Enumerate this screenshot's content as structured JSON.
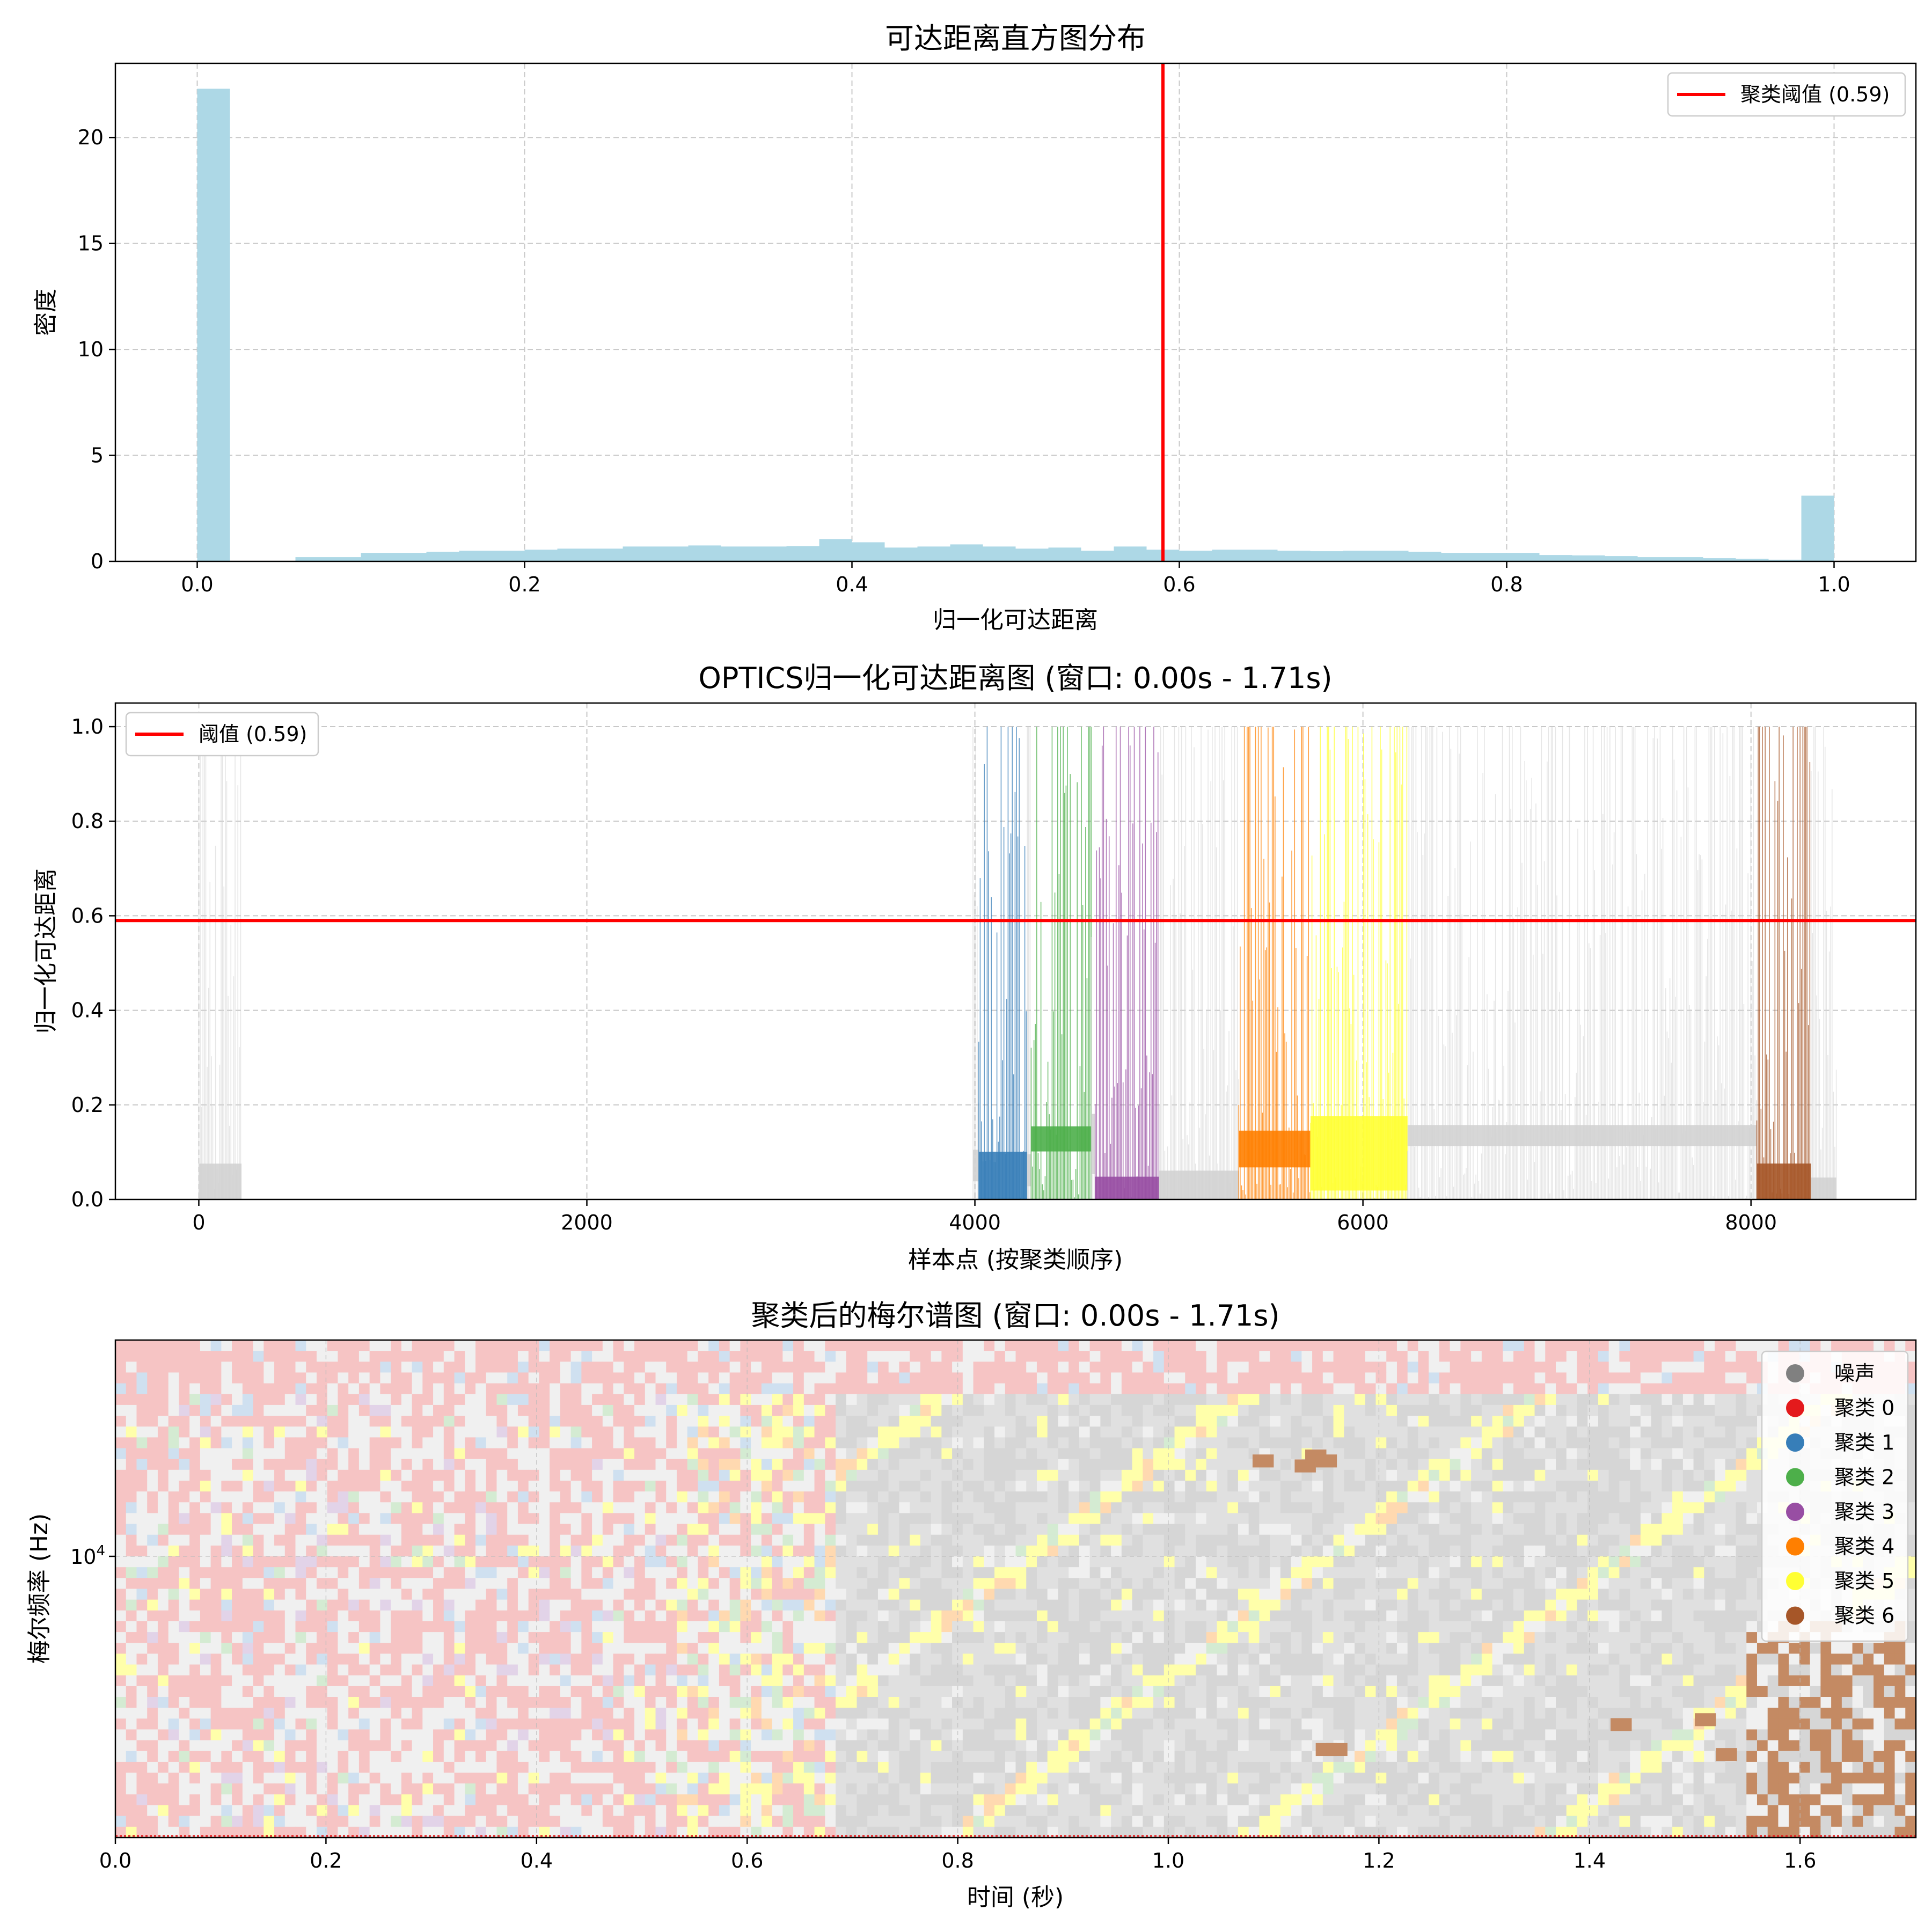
{
  "colors": {
    "hist_bar": "#add8e6",
    "threshold": "#ff0000",
    "noise_bar": "#d3d3d3",
    "cluster": [
      "#e41a1c",
      "#377eb8",
      "#4daf4a",
      "#984ea3",
      "#ff7f00",
      "#ffff33",
      "#a65628"
    ],
    "noise": "#808080",
    "grid": "#c8c8c8"
  },
  "chart_data": [
    {
      "type": "bar",
      "title": "可达距离直方图分布",
      "xlabel": "归一化可达距离",
      "ylabel": "密度",
      "xlim": [
        -0.05,
        1.05
      ],
      "ylim": [
        0,
        23.5
      ],
      "xticks": [
        0.0,
        0.2,
        0.4,
        0.6,
        0.8,
        1.0
      ],
      "xtick_labels": [
        "0.0",
        "0.2",
        "0.4",
        "0.6",
        "0.8",
        "1.0"
      ],
      "yticks": [
        0,
        5,
        10,
        15,
        20
      ],
      "ytick_labels": [
        "0",
        "5",
        "10",
        "15",
        "20"
      ],
      "grid": true,
      "bin_width": 0.02,
      "bins_start": [
        0.0,
        0.02,
        0.04,
        0.06,
        0.08,
        0.1,
        0.12,
        0.14,
        0.16,
        0.18,
        0.2,
        0.22,
        0.24,
        0.26,
        0.28,
        0.3,
        0.32,
        0.34,
        0.36,
        0.38,
        0.4,
        0.42,
        0.44,
        0.46,
        0.48,
        0.5,
        0.52,
        0.54,
        0.56,
        0.58,
        0.6,
        0.62,
        0.64,
        0.66,
        0.68,
        0.7,
        0.72,
        0.74,
        0.76,
        0.78,
        0.8,
        0.82,
        0.84,
        0.86,
        0.88,
        0.9,
        0.92,
        0.94,
        0.96,
        0.98
      ],
      "values": [
        22.3,
        0,
        0,
        0.2,
        0.2,
        0.4,
        0.4,
        0.45,
        0.5,
        0.5,
        0.55,
        0.6,
        0.6,
        0.7,
        0.7,
        0.75,
        0.7,
        0.7,
        0.72,
        1.05,
        0.9,
        0.65,
        0.7,
        0.8,
        0.7,
        0.6,
        0.65,
        0.5,
        0.7,
        0.55,
        0.5,
        0.55,
        0.55,
        0.5,
        0.48,
        0.5,
        0.5,
        0.45,
        0.4,
        0.4,
        0.4,
        0.3,
        0.28,
        0.25,
        0.2,
        0.2,
        0.15,
        0.12,
        0.08,
        3.1
      ],
      "threshold": {
        "value": 0.59,
        "label": "聚类阈值 (0.59)"
      },
      "legend": "top-right"
    },
    {
      "type": "bar",
      "title": "OPTICS归一化可达距离图 (窗口: 0.00s - 1.71s)",
      "xlabel": "样本点 (按聚类顺序)",
      "ylabel": "归一化可达距离",
      "xlim": [
        -430,
        8850
      ],
      "ylim": [
        0,
        1.05
      ],
      "xticks": [
        0,
        2000,
        4000,
        6000,
        8000
      ],
      "xtick_labels": [
        "0",
        "2000",
        "4000",
        "6000",
        "8000"
      ],
      "yticks": [
        0.0,
        0.2,
        0.4,
        0.6,
        0.8,
        1.0
      ],
      "ytick_labels": [
        "0.0",
        "0.2",
        "0.4",
        "0.6",
        "0.8",
        "1.0"
      ],
      "grid": true,
      "threshold": {
        "value": 0.59,
        "label": "阈值 (0.59)"
      },
      "legend": "top-left",
      "segments": [
        {
          "cluster": "noise",
          "x_start": 0,
          "x_end": 220
        },
        {
          "cluster": "noise",
          "x_start": 3990,
          "x_end": 4020
        },
        {
          "cluster": 1,
          "x_start": 4020,
          "x_end": 4270
        },
        {
          "cluster": "noise",
          "x_start": 4270,
          "x_end": 4290
        },
        {
          "cluster": 2,
          "x_start": 4290,
          "x_end": 4600
        },
        {
          "cluster": "noise",
          "x_start": 4600,
          "x_end": 4620
        },
        {
          "cluster": 3,
          "x_start": 4620,
          "x_end": 4950
        },
        {
          "cluster": "noise",
          "x_start": 4950,
          "x_end": 5360
        },
        {
          "cluster": 4,
          "x_start": 5360,
          "x_end": 5730
        },
        {
          "cluster": 5,
          "x_start": 5730,
          "x_end": 6230
        },
        {
          "cluster": "noise",
          "x_start": 6230,
          "x_end": 8030
        },
        {
          "cluster": 6,
          "x_start": 8030,
          "x_end": 8310
        },
        {
          "cluster": "noise",
          "x_start": 8310,
          "x_end": 8440
        }
      ]
    },
    {
      "type": "heatmap",
      "title": "聚类后的梅尔谱图 (窗口: 0.00s - 1.71s)",
      "xlabel": "时间 (秒)",
      "ylabel": "梅尔频率 (Hz)",
      "xlim": [
        0.0,
        1.71
      ],
      "xticks": [
        0.0,
        0.2,
        0.4,
        0.6,
        0.8,
        1.0,
        1.2,
        1.4,
        1.6
      ],
      "xtick_labels": [
        "0.0",
        "0.2",
        "0.4",
        "0.6",
        "0.8",
        "1.0",
        "1.2",
        "1.4",
        "1.6"
      ],
      "ytick": {
        "base": "10",
        "exp": "4"
      },
      "y_scale": "log",
      "grid": true,
      "legend": "top-right",
      "legend_entries": [
        {
          "label": "噪声",
          "cluster": "noise"
        },
        {
          "label": "聚类 0",
          "cluster": 0
        },
        {
          "label": "聚类 1",
          "cluster": 1
        },
        {
          "label": "聚类 2",
          "cluster": 2
        },
        {
          "label": "聚类 3",
          "cluster": 3
        },
        {
          "label": "聚类 4",
          "cluster": 4
        },
        {
          "label": "聚类 5",
          "cluster": 5
        },
        {
          "label": "聚类 6",
          "cluster": 6
        }
      ]
    }
  ]
}
